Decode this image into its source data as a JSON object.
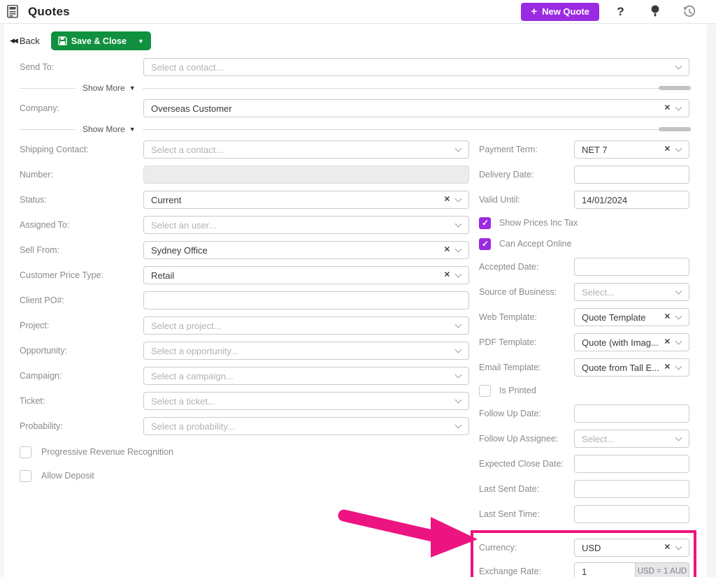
{
  "header": {
    "title": "Quotes",
    "new_quote_plus": "+",
    "new_quote_label": "New Quote",
    "help_glyph": "?"
  },
  "toolbar": {
    "back_glyph": "◀◀",
    "back_label": "Back",
    "save_close_label": "Save & Close",
    "save_caret": "▼"
  },
  "dividers": {
    "show_more_label": "Show More",
    "caret": "▼"
  },
  "icons": {
    "clear_glyph": "✕"
  },
  "top_fields": [
    {
      "label": "Send To:",
      "placeholder": "Select a contact...",
      "chevron": true
    },
    {
      "label": "Company:",
      "value": "Overseas Customer",
      "clear": true,
      "chevron": true
    }
  ],
  "left_fields": [
    {
      "label": "Shipping Contact:",
      "placeholder": "Select a contact...",
      "chevron": true
    },
    {
      "label": "Number:",
      "value": "",
      "disabled": true
    },
    {
      "label": "Status:",
      "value": "Current",
      "clear": true,
      "chevron": true
    },
    {
      "label": "Assigned To:",
      "placeholder": "Select an user...",
      "chevron": true
    },
    {
      "label": "Sell From:",
      "value": "Sydney Office",
      "clear": true,
      "chevron": true
    },
    {
      "label": "Customer Price Type:",
      "value": "Retail",
      "clear": true,
      "chevron": true
    },
    {
      "label": "Client PO#:",
      "value": ""
    },
    {
      "label": "Project:",
      "placeholder": "Select a project...",
      "chevron": true
    },
    {
      "label": "Opportunity:",
      "placeholder": "Select a opportunity...",
      "chevron": true
    },
    {
      "label": "Campaign:",
      "placeholder": "Select a campaign...",
      "chevron": true
    },
    {
      "label": "Ticket:",
      "placeholder": "Select a ticket...",
      "chevron": true
    },
    {
      "label": "Probability:",
      "placeholder": "Select a probability...",
      "chevron": true
    }
  ],
  "left_checkboxes": [
    {
      "label": "Progressive Revenue Recognition",
      "checked": false
    },
    {
      "label": "Allow Deposit",
      "checked": false
    }
  ],
  "right_items": [
    {
      "kind": "field",
      "label": "Payment Term:",
      "value": "NET 7",
      "clear": true,
      "chevron": true
    },
    {
      "kind": "field",
      "label": "Delivery Date:",
      "value": ""
    },
    {
      "kind": "field",
      "label": "Valid Until:",
      "value": "14/01/2024"
    },
    {
      "kind": "checkbox",
      "label": "Show Prices Inc Tax",
      "checked": true
    },
    {
      "kind": "checkbox",
      "label": "Can Accept Online",
      "checked": true
    },
    {
      "kind": "field",
      "label": "Accepted Date:",
      "value": ""
    },
    {
      "kind": "field",
      "label": "Source of Business:",
      "placeholder": "Select...",
      "chevron": true
    },
    {
      "kind": "field",
      "label": "Web Template:",
      "value": "Quote Template",
      "clear": true,
      "chevron": true
    },
    {
      "kind": "field",
      "label": "PDF Template:",
      "value": "Quote (with Imag...",
      "clear": true,
      "chevron": true
    },
    {
      "kind": "field",
      "label": "Email Template:",
      "value": "Quote from Tall E...",
      "clear": true,
      "chevron": true
    },
    {
      "kind": "checkbox",
      "label": "Is Printed",
      "checked": false
    },
    {
      "kind": "field",
      "label": "Follow Up Date:",
      "value": ""
    },
    {
      "kind": "field",
      "label": "Follow Up Assignee:",
      "placeholder": "Select...",
      "chevron": true
    },
    {
      "kind": "field",
      "label": "Expected Close Date:",
      "value": ""
    },
    {
      "kind": "field",
      "label": "Last Sent Date:",
      "value": ""
    },
    {
      "kind": "field",
      "label": "Last Sent Time:",
      "value": ""
    }
  ],
  "highlight_items": [
    {
      "kind": "field",
      "label": "Currency:",
      "value": "USD",
      "clear": true,
      "chevron": true
    },
    {
      "kind": "field",
      "label": "Exchange Rate:",
      "value": "1",
      "addon": "USD = 1 AUD"
    }
  ],
  "colors": {
    "accent_purple": "#9b2be2",
    "success_green": "#11913f",
    "annotation_pink": "#ec1480"
  }
}
